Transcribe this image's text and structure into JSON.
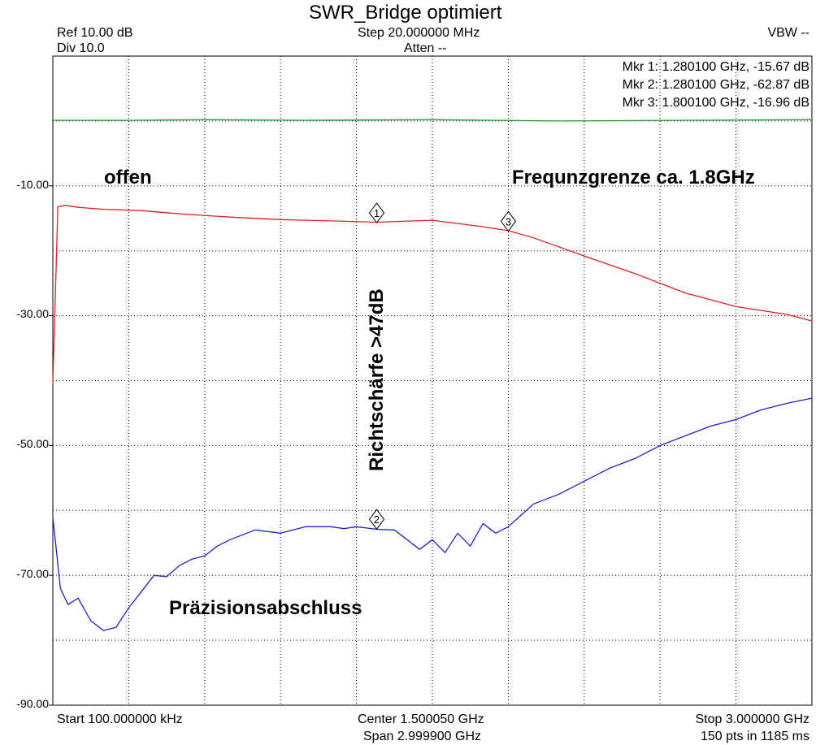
{
  "header": {
    "title": "SWR_Bridge optimiert",
    "ref": "Ref 10.00 dB",
    "div": "Div 10.0",
    "step": "Step 20.000000 MHz",
    "atten": "Atten --",
    "vbw": "VBW --"
  },
  "footer": {
    "start": "Start 100.000000 kHz",
    "center": "Center 1.500050 GHz",
    "span": "Span 2.999900 GHz",
    "stop": "Stop 3.000000 GHz",
    "points": "150 pts in 1185 ms"
  },
  "markers": [
    {
      "label": "1",
      "text": "Mkr 1: 1.280100 GHz, -15.67 dB",
      "x": 1.2801,
      "y": -15.67,
      "series": "offen"
    },
    {
      "label": "2",
      "text": "Mkr 2: 1.280100 GHz, -62.87 dB",
      "x": 1.2801,
      "y": -62.87,
      "series": "Präzisionsabschluss"
    },
    {
      "label": "3",
      "text": "Mkr 3: 1.800100 GHz, -16.96 dB",
      "x": 1.8001,
      "y": -16.96,
      "series": "offen"
    }
  ],
  "annotations": {
    "open": "offen",
    "freq_limit": "Frequnzgrenze ca. 1.8GHz",
    "directivity": "Richtschärfe >47dB",
    "termination": "Präzisionsabschluss"
  },
  "chart_data": {
    "type": "line",
    "title": "SWR_Bridge optimiert",
    "xlabel": "",
    "ylabel": "",
    "xlim": [
      0.0001,
      3.0
    ],
    "ylim": [
      -90,
      10
    ],
    "x_unit": "GHz",
    "y_unit": "dB",
    "yticks": [
      -10,
      -30,
      -50,
      -70,
      -90
    ],
    "ytick_labels": [
      "-10.00",
      "-30.00",
      "-50.00",
      "-70.00",
      "-90.00"
    ],
    "grid": true,
    "series": [
      {
        "color": "#2a9a2a",
        "x": [
          0.0,
          0.3,
          0.6,
          1.0,
          1.5,
          2.0,
          2.5,
          3.0
        ],
        "y": [
          0.1,
          0.1,
          0.2,
          0.1,
          0.2,
          0.0,
          0.1,
          0.2
        ]
      },
      {
        "color": "#e02020",
        "x": [
          0.0,
          0.02,
          0.05,
          0.1,
          0.2,
          0.35,
          0.5,
          0.7,
          0.9,
          1.1,
          1.28,
          1.5,
          1.7,
          1.8,
          1.9,
          2.1,
          2.3,
          2.5,
          2.7,
          2.9,
          3.0
        ],
        "y": [
          -40.5,
          -13.2,
          -13.0,
          -13.3,
          -13.6,
          -13.8,
          -14.3,
          -14.8,
          -15.2,
          -15.4,
          -15.6,
          -15.3,
          -16.3,
          -16.9,
          -18.0,
          -20.8,
          -23.5,
          -26.5,
          -28.6,
          -29.8,
          -30.8
        ]
      },
      {
        "color": "#2020d0",
        "x": [
          0.0,
          0.03,
          0.06,
          0.1,
          0.15,
          0.2,
          0.25,
          0.3,
          0.35,
          0.4,
          0.45,
          0.5,
          0.55,
          0.6,
          0.65,
          0.7,
          0.8,
          0.9,
          1.0,
          1.05,
          1.1,
          1.15,
          1.2,
          1.28,
          1.35,
          1.4,
          1.45,
          1.5,
          1.55,
          1.6,
          1.65,
          1.7,
          1.75,
          1.8,
          1.9,
          2.0,
          2.1,
          2.2,
          2.3,
          2.4,
          2.5,
          2.6,
          2.7,
          2.8,
          2.9,
          3.0
        ],
        "y": [
          -61.0,
          -72.0,
          -74.5,
          -73.5,
          -77.0,
          -78.5,
          -78.0,
          -75.0,
          -72.5,
          -70.0,
          -70.2,
          -68.5,
          -67.5,
          -67.0,
          -65.5,
          -64.5,
          -63.0,
          -63.5,
          -62.5,
          -62.5,
          -62.5,
          -62.8,
          -62.5,
          -62.9,
          -63.0,
          -64.5,
          -66.0,
          -64.5,
          -66.5,
          -63.5,
          -65.5,
          -62.0,
          -63.5,
          -62.5,
          -59.0,
          -57.5,
          -55.5,
          -53.5,
          -52.0,
          -50.0,
          -48.5,
          -47.0,
          -46.0,
          -44.5,
          -43.5,
          -42.7
        ]
      }
    ]
  }
}
